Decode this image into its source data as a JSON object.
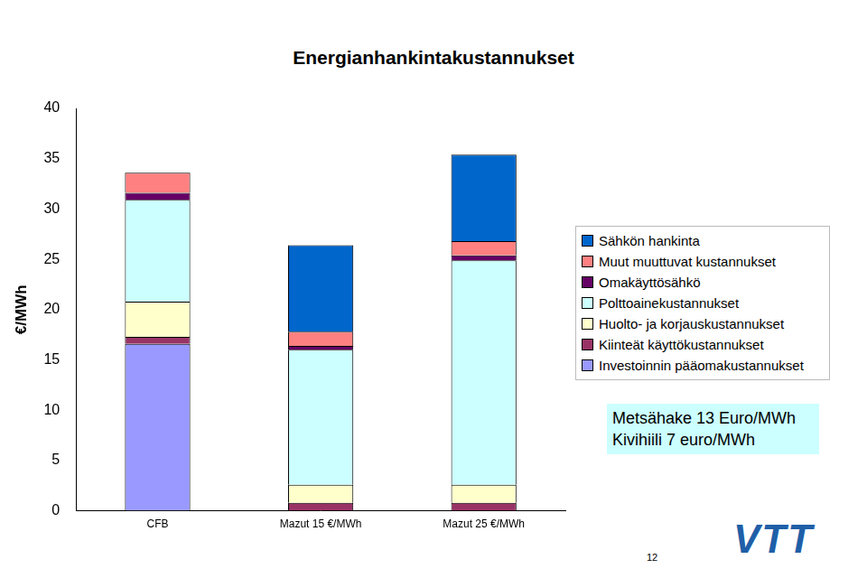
{
  "chart_data": {
    "type": "bar",
    "title": "Energianhankintakustannukset",
    "y_label": "€/MWh",
    "categories": [
      "CFB",
      "Mazut 15 €/MWh",
      "Mazut 25 €/MWh"
    ],
    "stacked": true,
    "grid": false,
    "legend": "right",
    "ylim": [
      0,
      40
    ],
    "yticks": [
      0,
      5,
      10,
      15,
      20,
      25,
      30,
      35,
      40
    ],
    "series": [
      {
        "name": "Investoinnin pääomakustannukset",
        "color": "#9999ff",
        "values": [
          16.6,
          0,
          0
        ]
      },
      {
        "name": "Kiinteät käyttökustannukset",
        "color": "#993366",
        "values": [
          0.7,
          0.8,
          0.8
        ]
      },
      {
        "name": "Huolto- ja korjauskustannukset",
        "color": "#ffffcc",
        "values": [
          3.5,
          1.8,
          1.8
        ]
      },
      {
        "name": "Polttoainekustannukset",
        "color": "#ccffff",
        "values": [
          10.1,
          13.4,
          22.3
        ]
      },
      {
        "name": "Omakäyttösähkö",
        "color": "#660066",
        "values": [
          0.7,
          0.4,
          0.5
        ]
      },
      {
        "name": "Muut muuttuvat kustannukset",
        "color": "#ff8080",
        "values": [
          2.0,
          1.4,
          1.4
        ]
      },
      {
        "name": "Sähkön hankinta",
        "color": "#0066cc",
        "values": [
          0,
          8.6,
          8.6
        ]
      }
    ],
    "annotations": [
      "Metsähake 13 Euro/MWh",
      "Kivihiili 7 euro/MWh"
    ],
    "footer": {
      "page": "12",
      "logo": "VTT"
    }
  }
}
